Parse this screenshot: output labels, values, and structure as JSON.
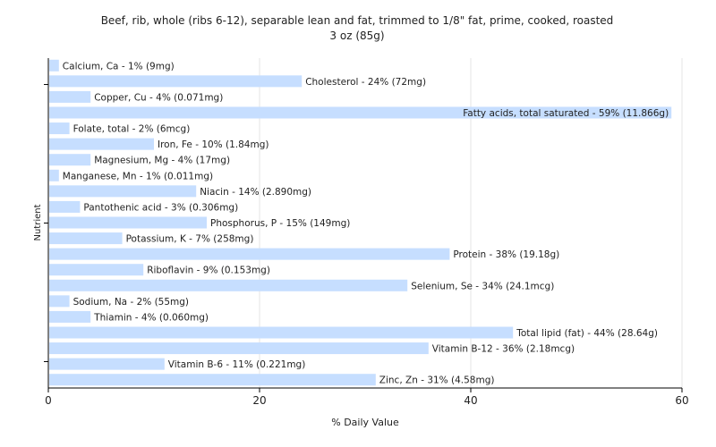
{
  "chart_data": {
    "type": "bar",
    "orientation": "horizontal",
    "title": "Beef, rib, whole (ribs 6-12), separable lean and fat, trimmed to 1/8\" fat, prime, cooked, roasted",
    "subtitle": "3 oz (85g)",
    "xlabel": "% Daily Value",
    "ylabel": "Nutrient",
    "xlim": [
      0,
      60
    ],
    "xticks": [
      0,
      20,
      40,
      60
    ],
    "grid": true,
    "bar_color": "#c6deff",
    "categories": [
      "Calcium, Ca",
      "Cholesterol",
      "Copper, Cu",
      "Fatty acids, total saturated",
      "Folate, total",
      "Iron, Fe",
      "Magnesium, Mg",
      "Manganese, Mn",
      "Niacin",
      "Pantothenic acid",
      "Phosphorus, P",
      "Potassium, K",
      "Protein",
      "Riboflavin",
      "Selenium, Se",
      "Sodium, Na",
      "Thiamin",
      "Total lipid (fat)",
      "Vitamin B-12",
      "Vitamin B-6",
      "Zinc, Zn"
    ],
    "values": [
      1,
      24,
      4,
      59,
      2,
      10,
      4,
      1,
      14,
      3,
      15,
      7,
      38,
      9,
      34,
      2,
      4,
      44,
      36,
      11,
      31
    ],
    "labels": [
      "Calcium, Ca - 1% (9mg)",
      "Cholesterol - 24% (72mg)",
      "Copper, Cu - 4% (0.071mg)",
      "Fatty acids, total saturated - 59% (11.866g)",
      "Folate, total - 2% (6mcg)",
      "Iron, Fe - 10% (1.84mg)",
      "Magnesium, Mg - 4% (17mg)",
      "Manganese, Mn - 1% (0.011mg)",
      "Niacin - 14% (2.890mg)",
      "Pantothenic acid - 3% (0.306mg)",
      "Phosphorus, P - 15% (149mg)",
      "Potassium, K - 7% (258mg)",
      "Protein - 38% (19.18g)",
      "Riboflavin - 9% (0.153mg)",
      "Selenium, Se - 34% (24.1mcg)",
      "Sodium, Na - 2% (55mg)",
      "Thiamin - 4% (0.060mg)",
      "Total lipid (fat) - 44% (28.64g)",
      "Vitamin B-12 - 36% (2.18mcg)",
      "Vitamin B-6 - 11% (0.221mg)",
      "Zinc, Zn - 31% (4.58mg)"
    ]
  }
}
